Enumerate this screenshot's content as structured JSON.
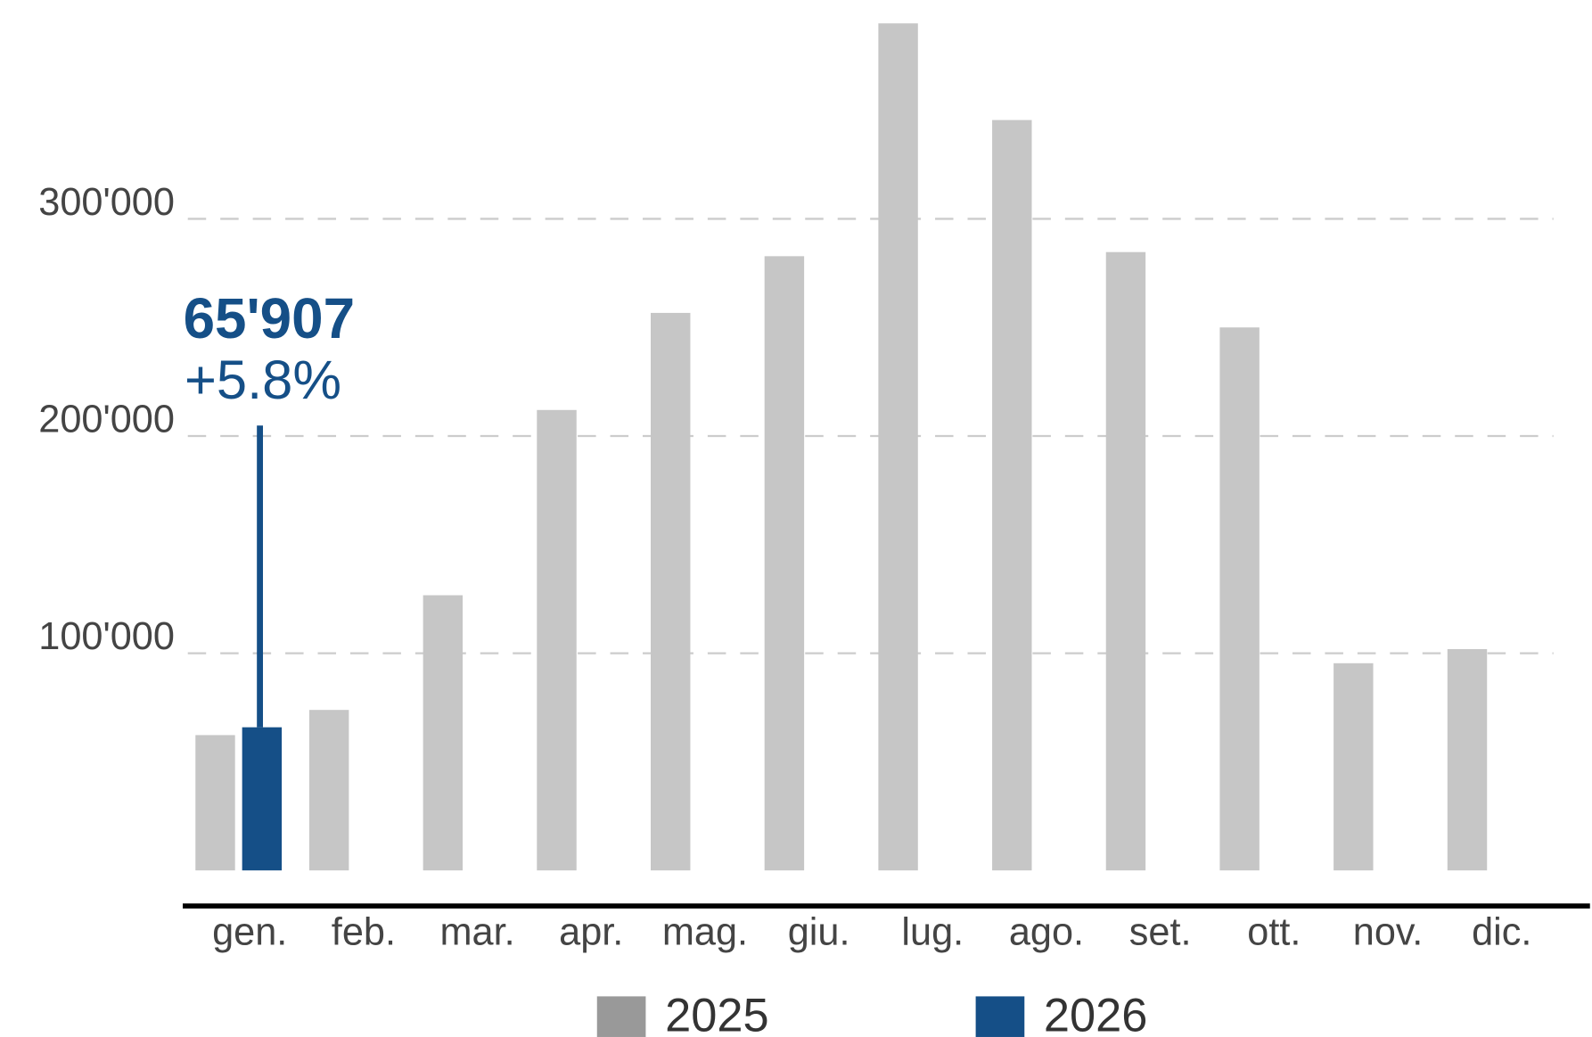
{
  "chart_data": {
    "type": "bar",
    "categories": [
      "gen.",
      "feb.",
      "mar.",
      "apr.",
      "mag.",
      "giu.",
      "lug.",
      "ago.",
      "set.",
      "ott.",
      "nov.",
      "dic."
    ],
    "series": [
      {
        "name": "2025",
        "color": "#c6c6c6",
        "legend_color": "#999999",
        "values": [
          62300,
          73900,
          126700,
          212000,
          256700,
          282800,
          390000,
          345500,
          284700,
          250000,
          95400,
          101900
        ]
      },
      {
        "name": "2026",
        "color": "#154f87",
        "values": [
          65907,
          null,
          null,
          null,
          null,
          null,
          null,
          null,
          null,
          null,
          null,
          null
        ],
        "value_labels": [
          "65'907",
          null,
          null,
          null,
          null,
          null,
          null,
          null,
          null,
          null,
          null,
          null
        ]
      }
    ],
    "annotation": "+5.8%",
    "ylim": [
      0,
      390000
    ],
    "yticks": [
      {
        "value": 100000,
        "label": "100'000"
      },
      {
        "value": 200000,
        "label": "200'000"
      },
      {
        "value": 300000,
        "label": "300'000"
      }
    ],
    "grid": true
  }
}
